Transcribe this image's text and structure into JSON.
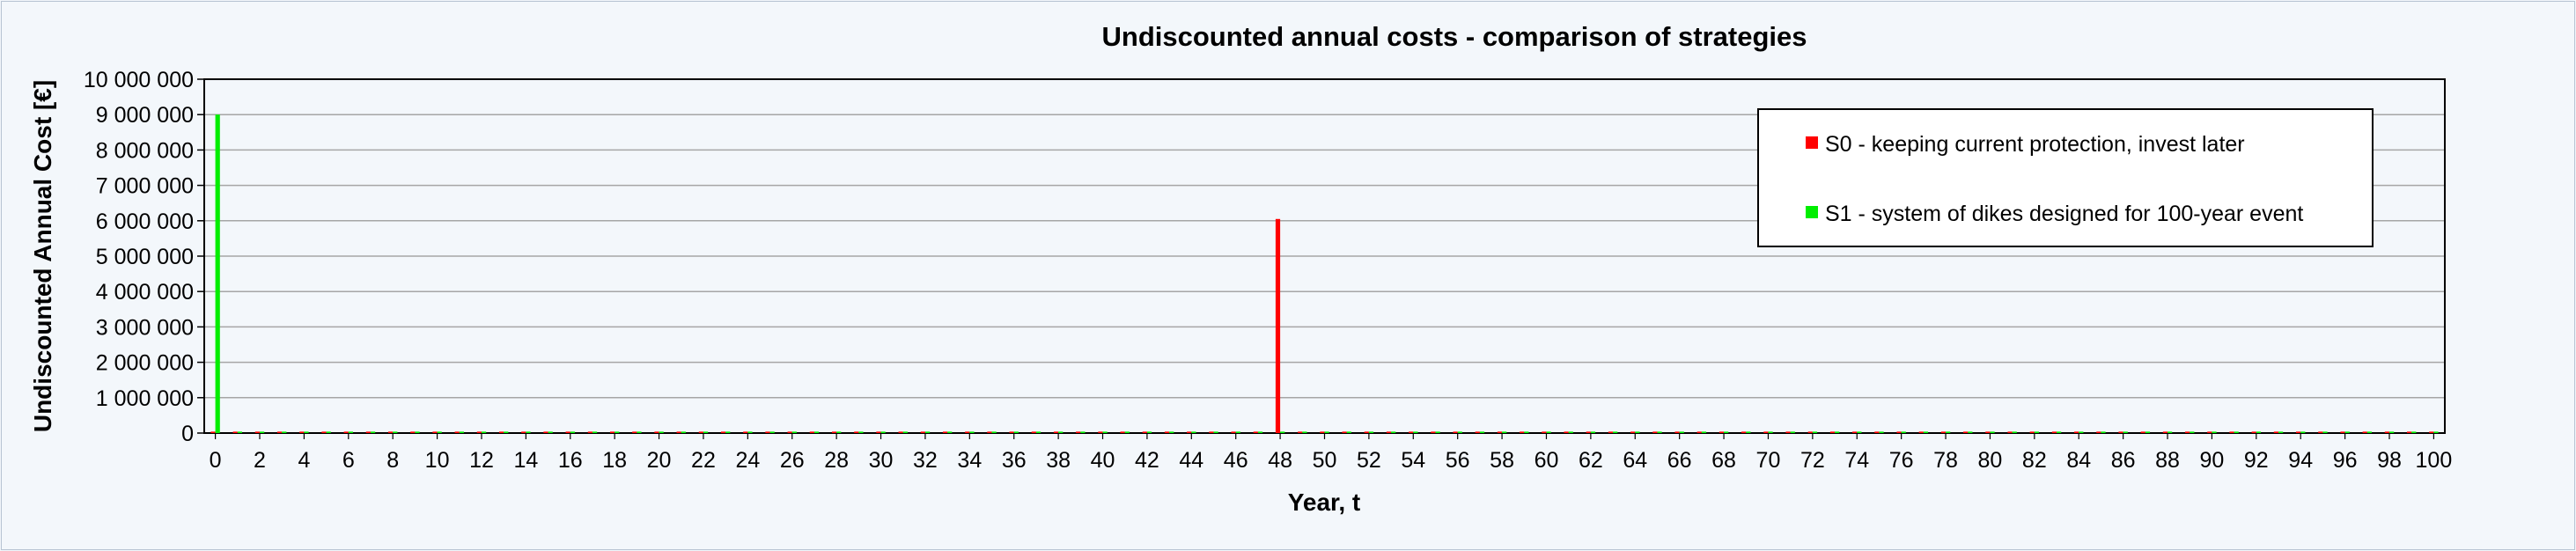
{
  "chart_data": {
    "type": "bar",
    "title": "Undiscounted  annual  costs  - comparison  of  strategies",
    "xlabel": "Year, t",
    "ylabel": "Undiscounted Annual Cost [€]",
    "ylim": [
      0,
      10000000
    ],
    "y_ticks": [
      0,
      1000000,
      2000000,
      3000000,
      4000000,
      5000000,
      6000000,
      7000000,
      8000000,
      9000000,
      10000000
    ],
    "y_tick_labels": [
      "0",
      "1 000 000",
      "2 000 000",
      "3 000 000",
      "4 000 000",
      "5 000 000",
      "6 000 000",
      "7 000 000",
      "8 000 000",
      "9 000 000",
      "10 000 000"
    ],
    "x_range": [
      0,
      100
    ],
    "x_tick_step": 2,
    "grid": "horizontal",
    "legend_position": "top-right",
    "series": [
      {
        "name": "S0 - keeping current protection, invest later",
        "color": "#ff0000",
        "baseline_value": 40000,
        "spikes": [
          {
            "x": 48,
            "value": 6050000
          }
        ]
      },
      {
        "name": "S1 -  system of dikes designed for 100-year event",
        "color": "#00ee00",
        "baseline_value": 40000,
        "spikes": [
          {
            "x": 0,
            "value": 9000000
          }
        ]
      }
    ]
  }
}
